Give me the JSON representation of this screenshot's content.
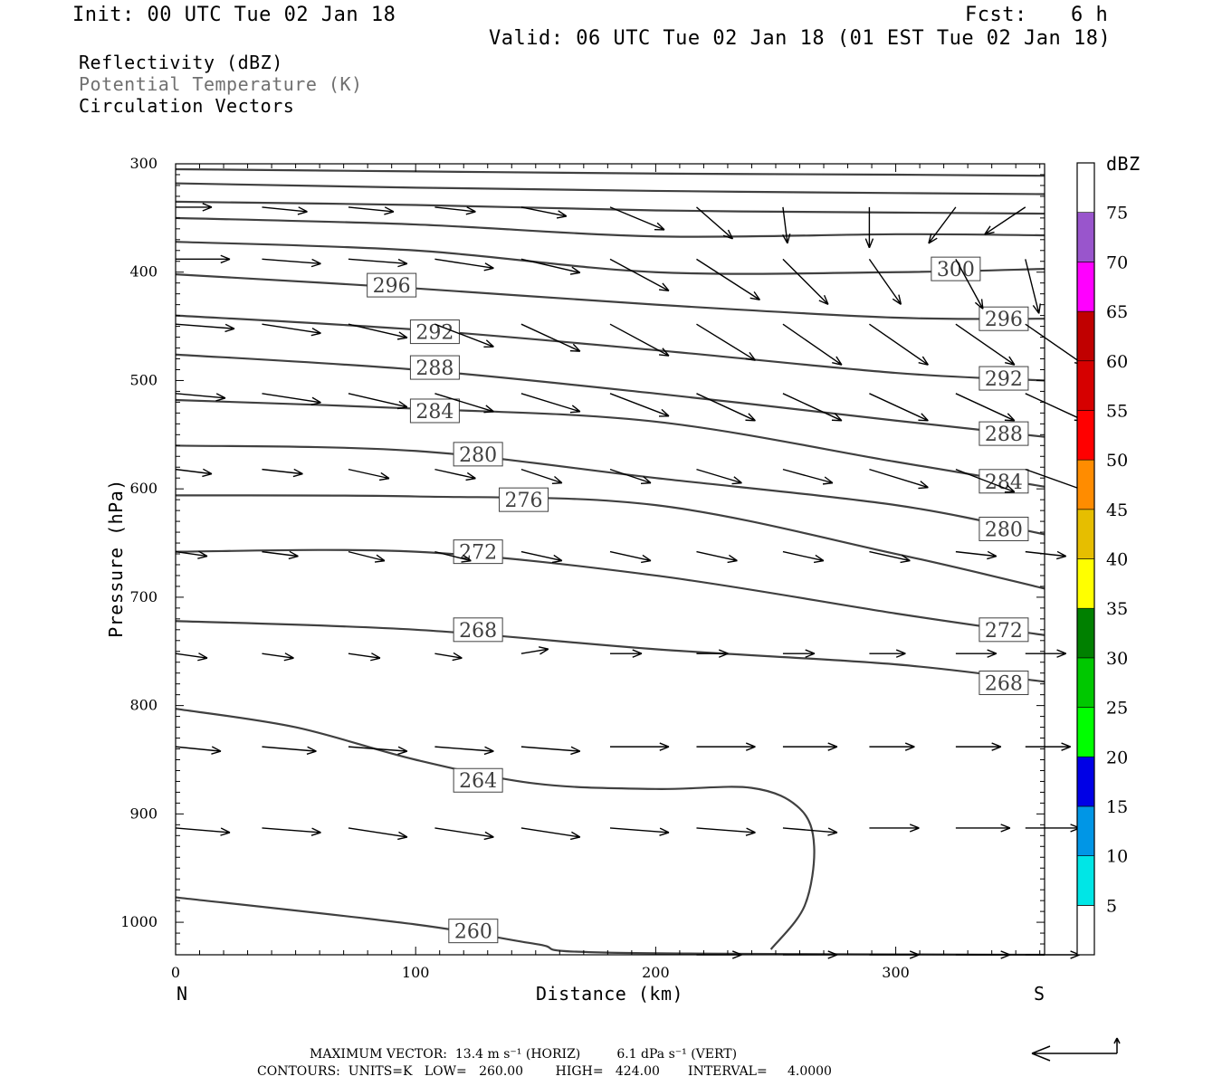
{
  "header": {
    "init": "Init: 00 UTC Tue 02 Jan 18",
    "fcst_label": "Fcst:",
    "fcst_value": "6 h",
    "valid": "Valid: 06 UTC Tue 02 Jan 18 (01 EST Tue 02 Jan 18)"
  },
  "fields": [
    {
      "text": "Reflectivity (dBZ)",
      "color": "#000000"
    },
    {
      "text": "Potential Temperature (K)",
      "color": "#707070"
    },
    {
      "text": "Circulation Vectors",
      "color": "#000000"
    }
  ],
  "footer": {
    "max_vector": "MAXIMUM VECTOR:  13.4 m s⁻¹ (HORIZ)         6.1 dPa s⁻¹ (VERT)",
    "contours": "CONTOURS:  UNITS=K   LOW=   260.00        HIGH=   424.00       INTERVAL=     4.0000"
  },
  "chart_data": {
    "type": "line",
    "xlabel": "Distance (km)",
    "ylabel": "Pressure (hPa)",
    "xlim": [
      0,
      362
    ],
    "ylim": [
      1030,
      300
    ],
    "x_ticks": [
      0,
      100,
      200,
      300
    ],
    "y_ticks": [
      300,
      400,
      500,
      600,
      700,
      800,
      900,
      1000
    ],
    "x_end_labels": {
      "left": "N",
      "right": "S"
    },
    "contour_color": "#404040",
    "vector_color": "#000000",
    "isentropes": [
      {
        "points": [
          [
            0,
            305
          ],
          [
            100,
            307
          ],
          [
            200,
            309
          ],
          [
            300,
            310
          ],
          [
            362,
            311
          ]
        ]
      },
      {
        "points": [
          [
            0,
            318
          ],
          [
            100,
            322
          ],
          [
            200,
            325
          ],
          [
            300,
            327
          ],
          [
            362,
            328
          ]
        ]
      },
      {
        "points": [
          [
            0,
            335
          ],
          [
            100,
            338
          ],
          [
            200,
            343
          ],
          [
            300,
            345
          ],
          [
            362,
            346
          ]
        ]
      },
      {
        "points": [
          [
            0,
            350
          ],
          [
            100,
            356
          ],
          [
            200,
            367
          ],
          [
            300,
            365
          ],
          [
            362,
            366
          ]
        ]
      },
      {
        "points": [
          [
            0,
            372
          ],
          [
            100,
            380
          ],
          [
            200,
            400
          ],
          [
            300,
            400
          ],
          [
            362,
            397
          ]
        ],
        "label": "300",
        "label_at": [
          325,
          397
        ]
      },
      {
        "points": [
          [
            0,
            402
          ],
          [
            100,
            415
          ],
          [
            200,
            430
          ],
          [
            300,
            442
          ],
          [
            362,
            443
          ]
        ],
        "label": "296",
        "label_at": [
          90,
          412
        ],
        "label_at2": [
          345,
          443
        ]
      },
      {
        "points": [
          [
            0,
            440
          ],
          [
            100,
            453
          ],
          [
            200,
            472
          ],
          [
            300,
            493
          ],
          [
            362,
            500
          ]
        ],
        "label": "292",
        "label_at": [
          108,
          455
        ],
        "label_at2": [
          345,
          498
        ]
      },
      {
        "points": [
          [
            0,
            476
          ],
          [
            100,
            490
          ],
          [
            200,
            512
          ],
          [
            300,
            537
          ],
          [
            362,
            552
          ]
        ],
        "label": "288",
        "label_at": [
          108,
          488
        ],
        "label_at2": [
          345,
          549
        ]
      },
      {
        "points": [
          [
            0,
            518
          ],
          [
            100,
            526
          ],
          [
            200,
            538
          ],
          [
            300,
            575
          ],
          [
            362,
            598
          ]
        ],
        "label": "284",
        "label_at": [
          108,
          528
        ],
        "label_at2": [
          345,
          593
        ]
      },
      {
        "points": [
          [
            0,
            560
          ],
          [
            100,
            565
          ],
          [
            200,
            590
          ],
          [
            300,
            615
          ],
          [
            362,
            642
          ]
        ],
        "label": "280",
        "label_at": [
          126,
          568
        ],
        "label_at2": [
          345,
          637
        ]
      },
      {
        "points": [
          [
            0,
            606
          ],
          [
            100,
            607
          ],
          [
            200,
            615
          ],
          [
            300,
            660
          ],
          [
            362,
            692
          ]
        ],
        "label": "276",
        "label_at": [
          145,
          610
        ]
      },
      {
        "points": [
          [
            0,
            658
          ],
          [
            100,
            658
          ],
          [
            200,
            680
          ],
          [
            300,
            715
          ],
          [
            362,
            735
          ]
        ],
        "label": "272",
        "label_at": [
          126,
          658
        ],
        "label_at2": [
          345,
          730
        ]
      },
      {
        "points": [
          [
            0,
            722
          ],
          [
            100,
            730
          ],
          [
            200,
            748
          ],
          [
            300,
            762
          ],
          [
            362,
            778
          ]
        ],
        "label": "268",
        "label_at": [
          126,
          730
        ],
        "label_at2": [
          345,
          779
        ]
      },
      {
        "points": [
          [
            0,
            803
          ],
          [
            50,
            820
          ],
          [
            100,
            850
          ],
          [
            150,
            872
          ],
          [
            200,
            877
          ],
          [
            240,
            876
          ],
          [
            260,
            895
          ],
          [
            266,
            930
          ],
          [
            262,
            985
          ],
          [
            248,
            1025
          ]
        ],
        "label": "264",
        "label_at": [
          126,
          869
        ]
      },
      {
        "points": [
          [
            0,
            977
          ],
          [
            100,
            1002
          ],
          [
            150,
            1020
          ],
          [
            180,
            1028
          ],
          [
            362,
            1030
          ]
        ],
        "label": "260",
        "label_at": [
          124,
          1008
        ]
      }
    ],
    "vector_rows": [
      {
        "p": 340,
        "dx": [
          8,
          10,
          10,
          9,
          10,
          12,
          8,
          1,
          0,
          -6,
          -9
        ],
        "dp": [
          0,
          1,
          1,
          1,
          2,
          5,
          7,
          8,
          9,
          8,
          6
        ]
      },
      {
        "p": 388,
        "dx": [
          12,
          13,
          13,
          13,
          13,
          13,
          14,
          10,
          7,
          6,
          3
        ],
        "dp": [
          0,
          1,
          1,
          2,
          3,
          7,
          9,
          10,
          10,
          11,
          12
        ]
      },
      {
        "p": 448,
        "dx": [
          13,
          13,
          13,
          13,
          13,
          13,
          13,
          13,
          13,
          13,
          13
        ],
        "dp": [
          1,
          2,
          3,
          5,
          6,
          7,
          8,
          9,
          9,
          9,
          9
        ]
      },
      {
        "p": 512,
        "dx": [
          11,
          13,
          13,
          13,
          13,
          13,
          13,
          13,
          13,
          13,
          13
        ],
        "dp": [
          1,
          2,
          3,
          4,
          4,
          5,
          6,
          6,
          6,
          6,
          6
        ]
      },
      {
        "p": 582,
        "dx": [
          8,
          9,
          9,
          9,
          9,
          9,
          10,
          11,
          13,
          13,
          14
        ],
        "dp": [
          1,
          1,
          2,
          2,
          3,
          3,
          3,
          3,
          4,
          5,
          5
        ]
      },
      {
        "p": 658,
        "dx": [
          7,
          8,
          8,
          8,
          9,
          9,
          9,
          9,
          9,
          9,
          9
        ],
        "dp": [
          1,
          1,
          2,
          2,
          2,
          2,
          2,
          2,
          2,
          1,
          1
        ]
      },
      {
        "p": 752,
        "dx": [
          7,
          7,
          7,
          6,
          6,
          7,
          7,
          7,
          8,
          9,
          9
        ],
        "dp": [
          1,
          1,
          1,
          1,
          -1,
          0,
          0,
          0,
          0,
          0,
          0
        ]
      },
      {
        "p": 838,
        "dx": [
          10,
          12,
          13,
          13,
          13,
          13,
          13,
          12,
          10,
          10,
          10
        ],
        "dp": [
          1,
          1,
          1,
          1,
          1,
          0,
          0,
          0,
          0,
          0,
          0
        ]
      },
      {
        "p": 913,
        "dx": [
          12,
          13,
          13,
          13,
          13,
          13,
          13,
          12,
          11,
          12,
          12
        ],
        "dp": [
          1,
          1,
          2,
          2,
          2,
          1,
          1,
          1,
          0,
          0,
          0
        ]
      },
      {
        "p": 1030,
        "dx": [
          0,
          0,
          0,
          0,
          0,
          0,
          10,
          12,
          11,
          12,
          12
        ],
        "dp": [
          0,
          0,
          0,
          0,
          0,
          0,
          0,
          0,
          0,
          0,
          0
        ]
      }
    ],
    "vector_columns_km": [
      0,
      36,
      72,
      108,
      144,
      181,
      217,
      253,
      289,
      325,
      354
    ],
    "colorbar": {
      "unit": "dBZ",
      "levels": [
        {
          "label": "5",
          "color": "#00e6e6"
        },
        {
          "label": "10",
          "color": "#0096e6"
        },
        {
          "label": "15",
          "color": "#0000e6"
        },
        {
          "label": "20",
          "color": "#00ff00"
        },
        {
          "label": "25",
          "color": "#00c800"
        },
        {
          "label": "30",
          "color": "#008000"
        },
        {
          "label": "35",
          "color": "#ffff00"
        },
        {
          "label": "40",
          "color": "#e6be00"
        },
        {
          "label": "45",
          "color": "#ff8c00"
        },
        {
          "label": "50",
          "color": "#ff0000"
        },
        {
          "label": "55",
          "color": "#d60000"
        },
        {
          "label": "60",
          "color": "#c00000"
        },
        {
          "label": "65",
          "color": "#ff00ff"
        },
        {
          "label": "70",
          "color": "#9955cc"
        },
        {
          "label": "75",
          "color": "#ffffff"
        }
      ]
    }
  }
}
